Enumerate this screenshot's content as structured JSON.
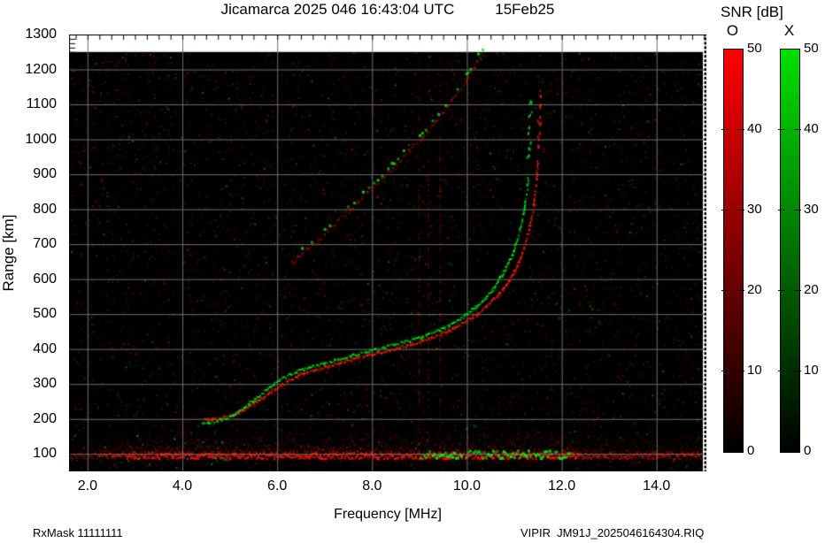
{
  "header": {
    "title_left": "Jicamarca 2025 046 16:43:04 UTC",
    "title_right": "15Feb25"
  },
  "footer": {
    "left": "RxMask 11111111",
    "right": "VIPIR  JM91J_2025046164304.RIQ"
  },
  "chart_data": {
    "type": "heatmap",
    "subtype": "ionogram",
    "title": "Jicamarca 2025 046 16:43:04 UTC 15Feb25",
    "xlabel": "Frequency [MHz]",
    "ylabel": "Range [km]",
    "x_range": [
      1.61,
      15.05
    ],
    "y_range": [
      50,
      1300
    ],
    "x_ticks": [
      {
        "v": 2,
        "label": "2.0"
      },
      {
        "v": 4,
        "label": "4.0"
      },
      {
        "v": 6,
        "label": "6.0"
      },
      {
        "v": 8,
        "label": "8.0"
      },
      {
        "v": 10,
        "label": "10.0"
      },
      {
        "v": 12,
        "label": "12.0"
      },
      {
        "v": 14,
        "label": "14.0"
      }
    ],
    "y_ticks": [
      {
        "v": 1300,
        "label": "1300"
      },
      {
        "v": 1200,
        "label": "1200"
      },
      {
        "v": 1100,
        "label": "1100"
      },
      {
        "v": 1000,
        "label": "1000"
      },
      {
        "v": 900,
        "label": "900"
      },
      {
        "v": 800,
        "label": "800"
      },
      {
        "v": 700,
        "label": "700"
      },
      {
        "v": 600,
        "label": "600"
      },
      {
        "v": 500,
        "label": "500"
      },
      {
        "v": 400,
        "label": "400"
      },
      {
        "v": 300,
        "label": "300"
      },
      {
        "v": 200,
        "label": "200"
      },
      {
        "v": 100,
        "label": "100"
      }
    ],
    "minor_x_step": 0.25,
    "minor_y_step": 12.5,
    "grid": {
      "color": "#6f6f6f"
    },
    "background": "#000000",
    "data_top_km": 1250,
    "colorbar": {
      "title": "SNR [dB]",
      "range": [
        0,
        50
      ],
      "bars": [
        {
          "label": "O",
          "color": "#ff0000"
        },
        {
          "label": "X",
          "color": "#00e000"
        }
      ],
      "ticks": [
        {
          "v": 50,
          "label": "50"
        },
        {
          "v": 40,
          "label": "40"
        },
        {
          "v": 30,
          "label": "30"
        },
        {
          "v": 20,
          "label": "20"
        },
        {
          "v": 10,
          "label": "10"
        },
        {
          "v": 0,
          "label": "0"
        }
      ]
    },
    "series": {
      "o_trace": {
        "name": "O-mode echo",
        "rgb": [
          255,
          35,
          10
        ],
        "points": [
          [
            4.45,
            200
          ],
          [
            4.65,
            202
          ],
          [
            4.85,
            206
          ],
          [
            5.05,
            213
          ],
          [
            5.25,
            226
          ],
          [
            5.45,
            243
          ],
          [
            5.65,
            261
          ],
          [
            5.85,
            280
          ],
          [
            6.05,
            297
          ],
          [
            6.25,
            314
          ],
          [
            6.45,
            327
          ],
          [
            6.65,
            337
          ],
          [
            6.85,
            345
          ],
          [
            7.05,
            352
          ],
          [
            7.3,
            362
          ],
          [
            7.55,
            371
          ],
          [
            7.8,
            380
          ],
          [
            8.05,
            388
          ],
          [
            8.3,
            397
          ],
          [
            8.55,
            406
          ],
          [
            8.8,
            415
          ],
          [
            9.05,
            425
          ],
          [
            9.3,
            437
          ],
          [
            9.55,
            452
          ],
          [
            9.8,
            468
          ],
          [
            10.0,
            484
          ],
          [
            10.2,
            502
          ],
          [
            10.4,
            524
          ],
          [
            10.6,
            550
          ],
          [
            10.8,
            582
          ],
          [
            10.95,
            615
          ],
          [
            11.1,
            655
          ],
          [
            11.2,
            695
          ],
          [
            11.3,
            745
          ],
          [
            11.38,
            800
          ],
          [
            11.43,
            855
          ],
          [
            11.46,
            900
          ],
          [
            11.48,
            940
          ]
        ],
        "top_dashes": [
          [
            11.49,
            975
          ],
          [
            11.5,
            1015
          ],
          [
            11.51,
            1055
          ],
          [
            11.51,
            1095
          ],
          [
            11.52,
            1135
          ]
        ]
      },
      "x_trace": {
        "name": "X-mode echo",
        "rgb": [
          0,
          235,
          30
        ],
        "points": [
          [
            4.4,
            190
          ],
          [
            4.6,
            193
          ],
          [
            4.8,
            199
          ],
          [
            5.0,
            209
          ],
          [
            5.2,
            226
          ],
          [
            5.4,
            247
          ],
          [
            5.6,
            268
          ],
          [
            5.8,
            290
          ],
          [
            6.0,
            310
          ],
          [
            6.2,
            326
          ],
          [
            6.4,
            338
          ],
          [
            6.6,
            347
          ],
          [
            6.8,
            355
          ],
          [
            7.0,
            362
          ],
          [
            7.25,
            372
          ],
          [
            7.5,
            381
          ],
          [
            7.75,
            390
          ],
          [
            8.0,
            398
          ],
          [
            8.25,
            407
          ],
          [
            8.5,
            416
          ],
          [
            8.75,
            425
          ],
          [
            9.0,
            435
          ],
          [
            9.25,
            448
          ],
          [
            9.5,
            462
          ],
          [
            9.7,
            477
          ],
          [
            9.9,
            494
          ],
          [
            10.1,
            514
          ],
          [
            10.3,
            537
          ],
          [
            10.5,
            566
          ],
          [
            10.65,
            597
          ],
          [
            10.8,
            632
          ],
          [
            10.95,
            674
          ],
          [
            11.05,
            717
          ],
          [
            11.15,
            767
          ],
          [
            11.22,
            822
          ],
          [
            11.26,
            867
          ],
          [
            11.28,
            907
          ]
        ],
        "top_dashes": [
          [
            11.29,
            945
          ],
          [
            11.3,
            985
          ],
          [
            11.31,
            1030
          ],
          [
            11.32,
            1075
          ],
          [
            11.33,
            1115
          ]
        ]
      },
      "second_hop": {
        "name": "second-hop echo",
        "rgb_red": [
          235,
          25,
          0
        ],
        "rgb_green": [
          0,
          235,
          30
        ],
        "points": [
          [
            6.3,
            650
          ],
          [
            6.6,
            685
          ],
          [
            6.9,
            722
          ],
          [
            7.2,
            760
          ],
          [
            7.5,
            800
          ],
          [
            7.8,
            838
          ],
          [
            8.1,
            878
          ],
          [
            8.4,
            918
          ],
          [
            8.7,
            960
          ],
          [
            9.0,
            1003
          ],
          [
            9.3,
            1050
          ],
          [
            9.6,
            1100
          ],
          [
            9.85,
            1148
          ],
          [
            10.05,
            1192
          ],
          [
            10.25,
            1238
          ],
          [
            10.35,
            1252
          ]
        ]
      },
      "e_region": {
        "core_km": 97,
        "bright_f": [
          2.8,
          12.35
        ],
        "green_segment": {
          "f": [
            9.0,
            12.15
          ],
          "km": [
            93,
            110
          ]
        },
        "green_patch": {
          "f": [
            2.55,
            4.95
          ],
          "km": [
            88,
            135
          ]
        }
      },
      "rfi": {
        "freqs": [
          8.98,
          9.17,
          9.42
        ]
      },
      "noise": {
        "seed": 1337,
        "red": 3000,
        "green": 1300
      }
    }
  }
}
